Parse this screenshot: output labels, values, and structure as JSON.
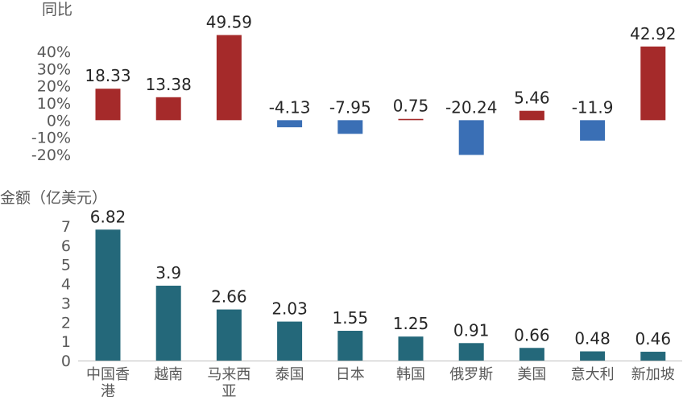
{
  "chart_data": [
    {
      "type": "bar",
      "ylabel": "同比",
      "categories": [
        "中国香港",
        "越南",
        "马来西亚",
        "泰国",
        "日本",
        "韩国",
        "俄罗斯",
        "美国",
        "意大利",
        "新加坡"
      ],
      "values": [
        18.33,
        13.38,
        49.59,
        -4.13,
        -7.95,
        0.75,
        -20.24,
        5.46,
        -11.9,
        42.92
      ],
      "data_labels": [
        "18.33",
        "13.38",
        "49.59",
        "-4.13",
        "-7.95",
        "0.75",
        "-20.24",
        "5.46",
        "-11.9",
        "42.92"
      ],
      "ylim": [
        -20,
        40
      ],
      "yticks": [
        "40%",
        "30%",
        "20%",
        "10%",
        "0%",
        "-10%",
        "-20%"
      ],
      "colors": {
        "positive": "#a52a2a",
        "negative": "#3a6fb5"
      },
      "grid": false
    },
    {
      "type": "bar",
      "ylabel": "金额（亿美元）",
      "categories": [
        "中国香港",
        "越南",
        "马来西亚",
        "泰国",
        "日本",
        "韩国",
        "俄罗斯",
        "美国",
        "意大利",
        "新加坡"
      ],
      "category_labels": [
        [
          "中国香",
          "港"
        ],
        [
          "越南"
        ],
        [
          "马来西",
          "亚"
        ],
        [
          "泰国"
        ],
        [
          "日本"
        ],
        [
          "韩国"
        ],
        [
          "俄罗斯"
        ],
        [
          "美国"
        ],
        [
          "意大利"
        ],
        [
          "新加坡"
        ]
      ],
      "values": [
        6.82,
        3.9,
        2.66,
        2.03,
        1.55,
        1.25,
        0.91,
        0.66,
        0.48,
        0.46
      ],
      "data_labels": [
        "6.82",
        "3.9",
        "2.66",
        "2.03",
        "1.55",
        "1.25",
        "0.91",
        "0.66",
        "0.48",
        "0.46"
      ],
      "ylim": [
        0,
        7
      ],
      "yticks": [
        "7",
        "6",
        "5",
        "4",
        "3",
        "2",
        "1",
        "0"
      ],
      "colors": {
        "bar": "#24687a"
      },
      "grid": false
    }
  ]
}
